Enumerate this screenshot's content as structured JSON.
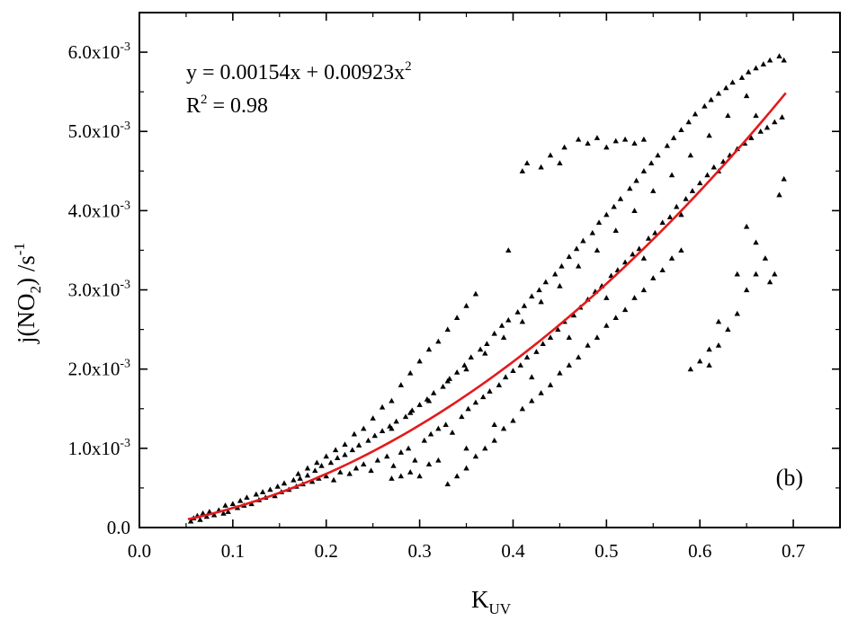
{
  "chart_data": {
    "type": "scatter",
    "panel_label": "(b)",
    "xlabel": {
      "main": "K",
      "sub": "UV"
    },
    "ylabel": {
      "p1": "j(NO",
      "sub": "2",
      "p2": ") /s",
      "sup": "-1"
    },
    "equation": {
      "text": "y = 0.00154x + 0.00923x",
      "sup": "2"
    },
    "r2": {
      "r": "R",
      "sup": "2",
      "rest": " = 0.98"
    },
    "xlim": [
      0.0,
      0.75
    ],
    "ylim": [
      0.0,
      0.0065
    ],
    "x_ticks": [
      {
        "v": 0.0,
        "label": "0.0"
      },
      {
        "v": 0.1,
        "label": "0.1"
      },
      {
        "v": 0.2,
        "label": "0.2"
      },
      {
        "v": 0.3,
        "label": "0.3"
      },
      {
        "v": 0.4,
        "label": "0.4"
      },
      {
        "v": 0.5,
        "label": "0.5"
      },
      {
        "v": 0.6,
        "label": "0.6"
      },
      {
        "v": 0.7,
        "label": "0.7"
      }
    ],
    "y_ticks": [
      {
        "v": 0.0,
        "label": "0.0",
        "exp": ""
      },
      {
        "v": 0.001,
        "label": "1.0x10",
        "exp": "-3"
      },
      {
        "v": 0.002,
        "label": "2.0x10",
        "exp": "-3"
      },
      {
        "v": 0.003,
        "label": "3.0x10",
        "exp": "-3"
      },
      {
        "v": 0.004,
        "label": "4.0x10",
        "exp": "-3"
      },
      {
        "v": 0.005,
        "label": "5.0x10",
        "exp": "-3"
      },
      {
        "v": 0.006,
        "label": "6.0x10",
        "exp": "-3"
      }
    ],
    "fit": {
      "a": 0.00154,
      "b": 0.00923,
      "x_range": [
        0.052,
        0.692
      ],
      "color": "#e41a1c"
    },
    "marker_color": "#000000",
    "points": [
      [
        0.055,
        8e-05
      ],
      [
        0.058,
        0.00012
      ],
      [
        0.062,
        0.00015
      ],
      [
        0.065,
        0.0001
      ],
      [
        0.068,
        0.00018
      ],
      [
        0.072,
        0.00014
      ],
      [
        0.075,
        0.0002
      ],
      [
        0.08,
        0.00016
      ],
      [
        0.085,
        0.00022
      ],
      [
        0.09,
        0.00018
      ],
      [
        0.092,
        0.00028
      ],
      [
        0.095,
        0.0002
      ],
      [
        0.1,
        0.0003
      ],
      [
        0.105,
        0.00025
      ],
      [
        0.108,
        0.00034
      ],
      [
        0.112,
        0.00028
      ],
      [
        0.115,
        0.00038
      ],
      [
        0.12,
        0.0003
      ],
      [
        0.125,
        0.00042
      ],
      [
        0.128,
        0.00035
      ],
      [
        0.132,
        0.00045
      ],
      [
        0.135,
        0.00038
      ],
      [
        0.14,
        0.00048
      ],
      [
        0.145,
        0.0004
      ],
      [
        0.148,
        0.00052
      ],
      [
        0.152,
        0.00045
      ],
      [
        0.155,
        0.00056
      ],
      [
        0.16,
        0.00048
      ],
      [
        0.165,
        0.0006
      ],
      [
        0.168,
        0.00052
      ],
      [
        0.172,
        0.00062
      ],
      [
        0.175,
        0.00055
      ],
      [
        0.18,
        0.00066
      ],
      [
        0.185,
        0.00058
      ],
      [
        0.188,
        0.00072
      ],
      [
        0.192,
        0.00062
      ],
      [
        0.195,
        0.00078
      ],
      [
        0.2,
        0.00065
      ],
      [
        0.205,
        0.00082
      ],
      [
        0.208,
        0.0006
      ],
      [
        0.212,
        0.00088
      ],
      [
        0.215,
        0.0007
      ],
      [
        0.22,
        0.00092
      ],
      [
        0.225,
        0.00068
      ],
      [
        0.228,
        0.00098
      ],
      [
        0.232,
        0.00075
      ],
      [
        0.235,
        0.00104
      ],
      [
        0.24,
        0.0008
      ],
      [
        0.245,
        0.0011
      ],
      [
        0.248,
        0.00072
      ],
      [
        0.252,
        0.00116
      ],
      [
        0.255,
        0.00085
      ],
      [
        0.26,
        0.00122
      ],
      [
        0.265,
        0.0009
      ],
      [
        0.268,
        0.00128
      ],
      [
        0.272,
        0.00078
      ],
      [
        0.275,
        0.00134
      ],
      [
        0.28,
        0.00095
      ],
      [
        0.285,
        0.0014
      ],
      [
        0.288,
        0.001
      ],
      [
        0.292,
        0.00148
      ],
      [
        0.295,
        0.00085
      ],
      [
        0.3,
        0.00155
      ],
      [
        0.305,
        0.0011
      ],
      [
        0.308,
        0.00162
      ],
      [
        0.312,
        0.00118
      ],
      [
        0.315,
        0.0017
      ],
      [
        0.32,
        0.00125
      ],
      [
        0.325,
        0.00178
      ],
      [
        0.328,
        0.0013
      ],
      [
        0.332,
        0.00188
      ],
      [
        0.335,
        0.0012
      ],
      [
        0.34,
        0.00196
      ],
      [
        0.345,
        0.0014
      ],
      [
        0.348,
        0.00205
      ],
      [
        0.352,
        0.0015
      ],
      [
        0.355,
        0.00215
      ],
      [
        0.36,
        0.00158
      ],
      [
        0.365,
        0.00225
      ],
      [
        0.368,
        0.00165
      ],
      [
        0.372,
        0.00232
      ],
      [
        0.375,
        0.00172
      ],
      [
        0.38,
        0.00245
      ],
      [
        0.385,
        0.0018
      ],
      [
        0.388,
        0.00255
      ],
      [
        0.392,
        0.0019
      ],
      [
        0.395,
        0.00262
      ],
      [
        0.4,
        0.00198
      ],
      [
        0.405,
        0.00272
      ],
      [
        0.408,
        0.00205
      ],
      [
        0.412,
        0.0028
      ],
      [
        0.415,
        0.00215
      ],
      [
        0.42,
        0.00292
      ],
      [
        0.425,
        0.00222
      ],
      [
        0.428,
        0.003
      ],
      [
        0.432,
        0.00232
      ],
      [
        0.435,
        0.0031
      ],
      [
        0.44,
        0.0024
      ],
      [
        0.445,
        0.0032
      ],
      [
        0.448,
        0.0025
      ],
      [
        0.452,
        0.0033
      ],
      [
        0.455,
        0.0026
      ],
      [
        0.46,
        0.00342
      ],
      [
        0.465,
        0.00268
      ],
      [
        0.468,
        0.00352
      ],
      [
        0.472,
        0.00278
      ],
      [
        0.475,
        0.00362
      ],
      [
        0.48,
        0.00288
      ],
      [
        0.485,
        0.00372
      ],
      [
        0.488,
        0.00298
      ],
      [
        0.492,
        0.00385
      ],
      [
        0.495,
        0.00305
      ],
      [
        0.5,
        0.00395
      ],
      [
        0.505,
        0.00318
      ],
      [
        0.508,
        0.00405
      ],
      [
        0.512,
        0.00325
      ],
      [
        0.515,
        0.00415
      ],
      [
        0.52,
        0.00335
      ],
      [
        0.525,
        0.00428
      ],
      [
        0.528,
        0.00345
      ],
      [
        0.532,
        0.00438
      ],
      [
        0.535,
        0.00352
      ],
      [
        0.54,
        0.0045
      ],
      [
        0.545,
        0.00365
      ],
      [
        0.548,
        0.0046
      ],
      [
        0.552,
        0.00372
      ],
      [
        0.555,
        0.0047
      ],
      [
        0.56,
        0.00385
      ],
      [
        0.565,
        0.00482
      ],
      [
        0.568,
        0.00392
      ],
      [
        0.572,
        0.00492
      ],
      [
        0.575,
        0.00405
      ],
      [
        0.58,
        0.00502
      ],
      [
        0.585,
        0.00415
      ],
      [
        0.588,
        0.00512
      ],
      [
        0.592,
        0.00425
      ],
      [
        0.595,
        0.00522
      ],
      [
        0.6,
        0.00435
      ],
      [
        0.605,
        0.00532
      ],
      [
        0.608,
        0.00445
      ],
      [
        0.612,
        0.0054
      ],
      [
        0.615,
        0.00455
      ],
      [
        0.62,
        0.00548
      ],
      [
        0.625,
        0.00462
      ],
      [
        0.628,
        0.00555
      ],
      [
        0.632,
        0.0047
      ],
      [
        0.635,
        0.00562
      ],
      [
        0.64,
        0.00478
      ],
      [
        0.645,
        0.00568
      ],
      [
        0.648,
        0.00485
      ],
      [
        0.652,
        0.00575
      ],
      [
        0.655,
        0.00492
      ],
      [
        0.66,
        0.0058
      ],
      [
        0.665,
        0.005
      ],
      [
        0.668,
        0.00585
      ],
      [
        0.672,
        0.00505
      ],
      [
        0.675,
        0.0059
      ],
      [
        0.68,
        0.00512
      ],
      [
        0.685,
        0.00595
      ],
      [
        0.688,
        0.00518
      ],
      [
        0.69,
        0.0059
      ],
      [
        0.47,
        0.0049
      ],
      [
        0.48,
        0.00485
      ],
      [
        0.49,
        0.00492
      ],
      [
        0.5,
        0.0048
      ],
      [
        0.51,
        0.00488
      ],
      [
        0.52,
        0.0049
      ],
      [
        0.53,
        0.00485
      ],
      [
        0.54,
        0.0049
      ],
      [
        0.455,
        0.0048
      ],
      [
        0.45,
        0.0046
      ],
      [
        0.44,
        0.0047
      ],
      [
        0.43,
        0.00455
      ],
      [
        0.415,
        0.0046
      ],
      [
        0.41,
        0.0045
      ],
      [
        0.395,
        0.0035
      ],
      [
        0.59,
        0.002
      ],
      [
        0.6,
        0.0021
      ],
      [
        0.61,
        0.00205
      ],
      [
        0.62,
        0.0023
      ],
      [
        0.63,
        0.0025
      ],
      [
        0.64,
        0.0027
      ],
      [
        0.65,
        0.003
      ],
      [
        0.66,
        0.0032
      ],
      [
        0.67,
        0.0034
      ],
      [
        0.68,
        0.0032
      ],
      [
        0.685,
        0.0042
      ],
      [
        0.69,
        0.0044
      ],
      [
        0.675,
        0.0031
      ],
      [
        0.66,
        0.0036
      ],
      [
        0.65,
        0.0038
      ],
      [
        0.64,
        0.0032
      ],
      [
        0.62,
        0.0026
      ],
      [
        0.61,
        0.00225
      ],
      [
        0.33,
        0.0025
      ],
      [
        0.32,
        0.00235
      ],
      [
        0.34,
        0.00265
      ],
      [
        0.35,
        0.0028
      ],
      [
        0.36,
        0.00295
      ],
      [
        0.31,
        0.00225
      ],
      [
        0.3,
        0.0021
      ],
      [
        0.29,
        0.00195
      ],
      [
        0.28,
        0.0018
      ],
      [
        0.27,
        0.0016
      ],
      [
        0.26,
        0.00152
      ],
      [
        0.25,
        0.00138
      ],
      [
        0.24,
        0.00125
      ],
      [
        0.23,
        0.00118
      ],
      [
        0.22,
        0.00105
      ],
      [
        0.21,
        0.00098
      ],
      [
        0.2,
        0.0009
      ],
      [
        0.19,
        0.00082
      ],
      [
        0.18,
        0.00075
      ],
      [
        0.17,
        0.00068
      ],
      [
        0.33,
        0.00055
      ],
      [
        0.34,
        0.00065
      ],
      [
        0.35,
        0.00075
      ],
      [
        0.36,
        0.0009
      ],
      [
        0.37,
        0.001
      ],
      [
        0.38,
        0.0011
      ],
      [
        0.39,
        0.00125
      ],
      [
        0.4,
        0.00135
      ],
      [
        0.41,
        0.0015
      ],
      [
        0.42,
        0.0016
      ],
      [
        0.43,
        0.0017
      ],
      [
        0.44,
        0.0018
      ],
      [
        0.45,
        0.00195
      ],
      [
        0.46,
        0.00205
      ],
      [
        0.47,
        0.00215
      ],
      [
        0.48,
        0.0023
      ],
      [
        0.49,
        0.0024
      ],
      [
        0.5,
        0.00255
      ],
      [
        0.51,
        0.00265
      ],
      [
        0.52,
        0.00275
      ],
      [
        0.53,
        0.0029
      ],
      [
        0.54,
        0.003
      ],
      [
        0.55,
        0.00315
      ],
      [
        0.56,
        0.00325
      ],
      [
        0.57,
        0.0034
      ],
      [
        0.58,
        0.0035
      ],
      [
        0.3,
        0.00065
      ],
      [
        0.31,
        0.0008
      ],
      [
        0.29,
        0.0007
      ],
      [
        0.28,
        0.00065
      ],
      [
        0.27,
        0.00062
      ],
      [
        0.32,
        0.00085
      ],
      [
        0.35,
        0.001
      ],
      [
        0.38,
        0.0013
      ],
      [
        0.42,
        0.0019
      ],
      [
        0.46,
        0.0024
      ],
      [
        0.5,
        0.0029
      ],
      [
        0.54,
        0.0034
      ],
      [
        0.58,
        0.00395
      ],
      [
        0.62,
        0.0045
      ],
      [
        0.66,
        0.0052
      ],
      [
        0.27,
        0.00125
      ],
      [
        0.29,
        0.00145
      ],
      [
        0.31,
        0.0016
      ],
      [
        0.33,
        0.00185
      ],
      [
        0.35,
        0.002
      ],
      [
        0.37,
        0.0022
      ],
      [
        0.39,
        0.0024
      ],
      [
        0.41,
        0.0026
      ],
      [
        0.43,
        0.00285
      ],
      [
        0.45,
        0.00305
      ],
      [
        0.47,
        0.0033
      ],
      [
        0.49,
        0.0035
      ],
      [
        0.51,
        0.00375
      ],
      [
        0.53,
        0.004
      ],
      [
        0.55,
        0.00425
      ],
      [
        0.57,
        0.00445
      ],
      [
        0.59,
        0.0047
      ],
      [
        0.61,
        0.00495
      ],
      [
        0.63,
        0.0052
      ],
      [
        0.65,
        0.00545
      ]
    ]
  }
}
